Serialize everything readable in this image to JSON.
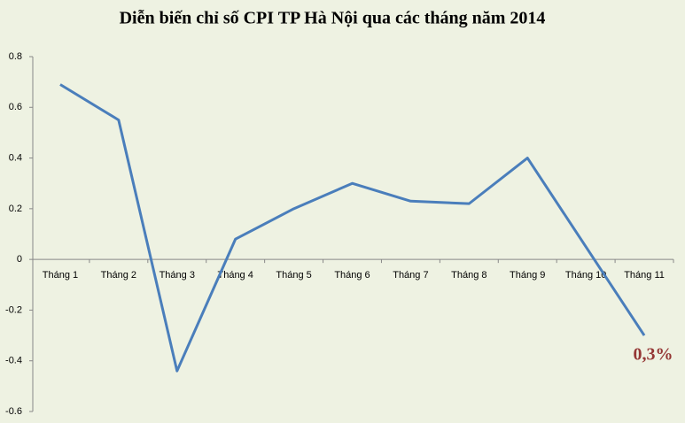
{
  "chart_data": {
    "type": "line",
    "title": "Diễn biến chỉ số CPI TP Hà Nội qua các tháng năm 2014",
    "categories": [
      "Tháng 1",
      "Tháng 2",
      "Tháng 3",
      "Tháng 4",
      "Tháng 5",
      "Tháng 6",
      "Tháng 7",
      "Tháng 8",
      "Tháng 9",
      "Tháng 10",
      "Tháng 11"
    ],
    "series": [
      {
        "name": "CPI",
        "color": "#4a7ebb",
        "values": [
          0.69,
          0.55,
          -0.44,
          0.08,
          0.2,
          0.3,
          0.23,
          0.22,
          0.4,
          0.05,
          -0.3
        ]
      }
    ],
    "ylim": [
      -0.6,
      0.8
    ],
    "yticks": [
      -0.6,
      -0.4,
      -0.2,
      0,
      0.2,
      0.4,
      0.6,
      0.8
    ],
    "grid": false,
    "annotation": "0,3%"
  }
}
